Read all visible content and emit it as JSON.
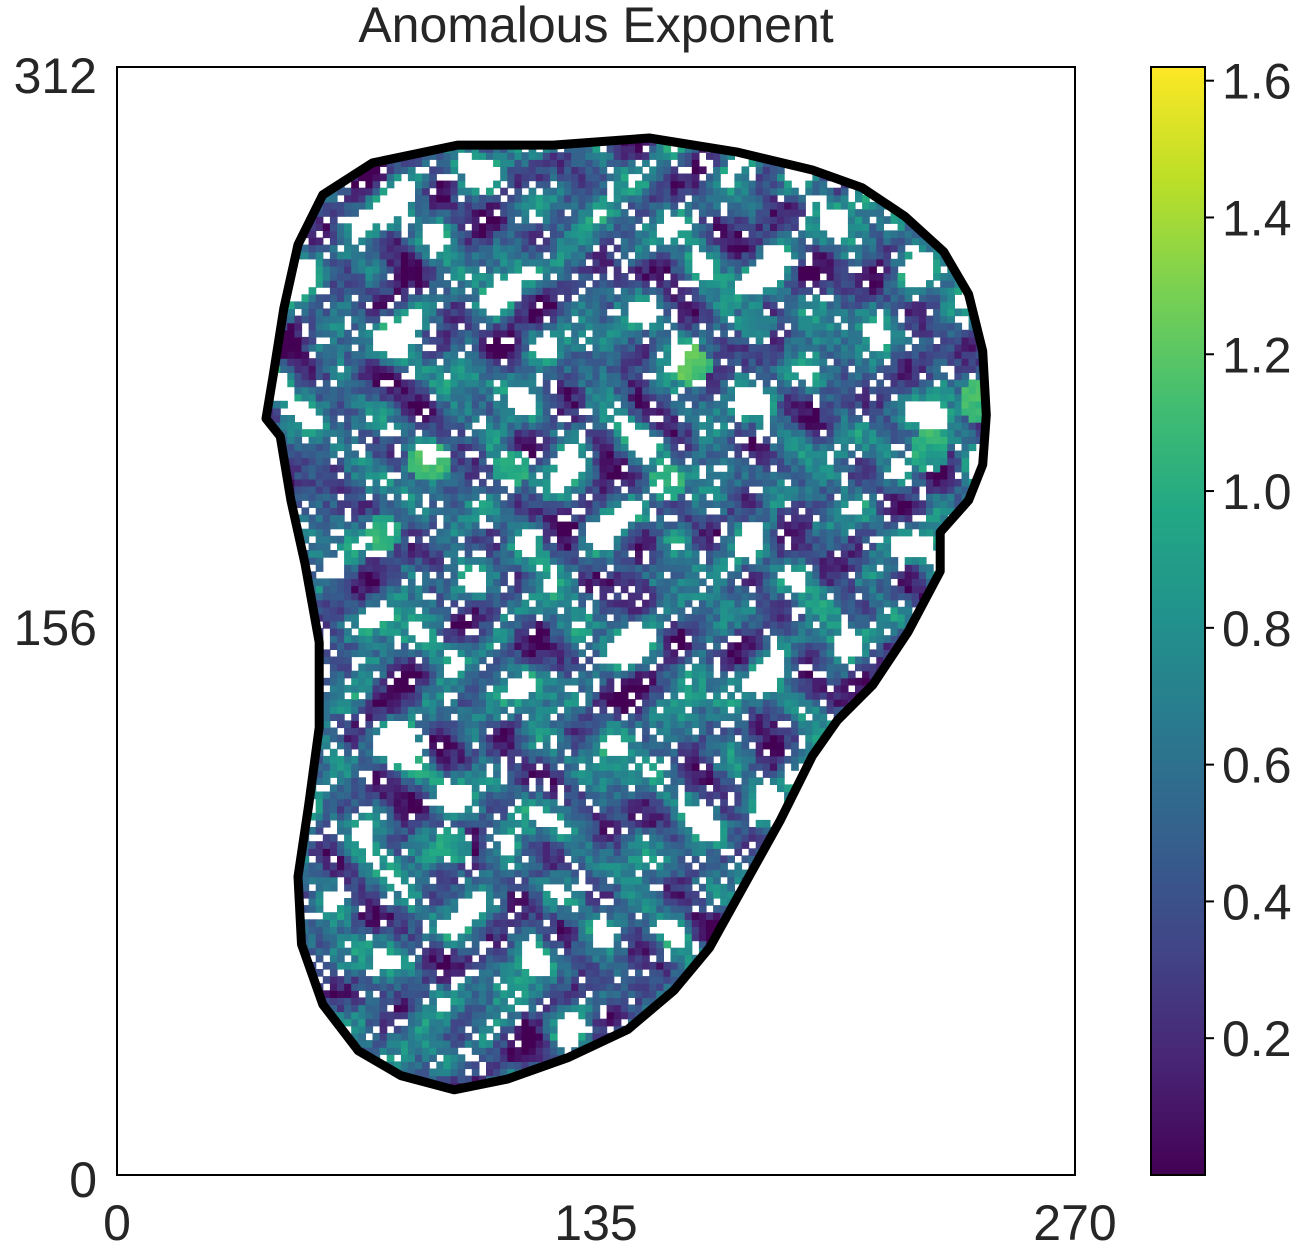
{
  "chart_data": {
    "type": "heatmap",
    "title": "Anomalous Exponent",
    "xlabel": "",
    "ylabel": "",
    "xlim": [
      0,
      270
    ],
    "ylim": [
      0,
      312
    ],
    "x_ticks": [
      "0",
      "135",
      "270"
    ],
    "y_ticks": [
      "0",
      "156",
      "312"
    ],
    "colorbar": {
      "colormap": "viridis",
      "range": [
        0.0,
        1.62
      ],
      "ticks": [
        "0.2",
        "0.4",
        "0.6",
        "0.8",
        "1.0",
        "1.2",
        "1.4",
        "1.6"
      ],
      "tick_values": [
        0.2,
        0.4,
        0.6,
        0.8,
        1.0,
        1.2,
        1.4,
        1.6
      ]
    },
    "background_color": "#ffffff",
    "outline_color": "#000000",
    "nan_color": "#ffffff",
    "region_outline": [
      [
        123,
        290
      ],
      [
        150,
        292
      ],
      [
        175,
        288
      ],
      [
        196,
        283
      ],
      [
        210,
        278
      ],
      [
        222,
        270
      ],
      [
        233,
        260
      ],
      [
        240,
        248
      ],
      [
        244,
        232
      ],
      [
        245,
        214
      ],
      [
        244,
        200
      ],
      [
        240,
        190
      ],
      [
        232,
        181
      ],
      [
        232,
        170
      ],
      [
        223,
        153
      ],
      [
        213,
        138
      ],
      [
        203,
        128
      ],
      [
        196,
        118
      ],
      [
        187,
        100
      ],
      [
        177,
        82
      ],
      [
        167,
        64
      ],
      [
        157,
        52
      ],
      [
        144,
        41
      ],
      [
        127,
        33
      ],
      [
        110,
        27
      ],
      [
        95,
        24
      ],
      [
        80,
        28
      ],
      [
        68,
        35
      ],
      [
        58,
        48
      ],
      [
        52,
        65
      ],
      [
        51,
        84
      ],
      [
        54,
        104
      ],
      [
        57,
        126
      ],
      [
        57,
        150
      ],
      [
        53,
        172
      ],
      [
        49,
        190
      ],
      [
        46,
        208
      ],
      [
        42,
        213
      ],
      [
        44,
        225
      ],
      [
        47,
        244
      ],
      [
        51,
        262
      ],
      [
        58,
        276
      ],
      [
        72,
        285
      ],
      [
        96,
        290
      ],
      [
        123,
        290
      ]
    ],
    "hotspots": [
      [
        88,
        201,
        1.3
      ],
      [
        155,
        195,
        1.25
      ],
      [
        162,
        228,
        1.45
      ],
      [
        243,
        218,
        1.4
      ],
      [
        229,
        204,
        1.3
      ],
      [
        147,
        163,
        0.1
      ],
      [
        191,
        185,
        0.05
      ],
      [
        111,
        199,
        1.2
      ],
      [
        75,
        181,
        1.2
      ],
      [
        180,
        240,
        1.0
      ],
      [
        95,
        93,
        1.2
      ],
      [
        60,
        170,
        0.4
      ]
    ]
  }
}
